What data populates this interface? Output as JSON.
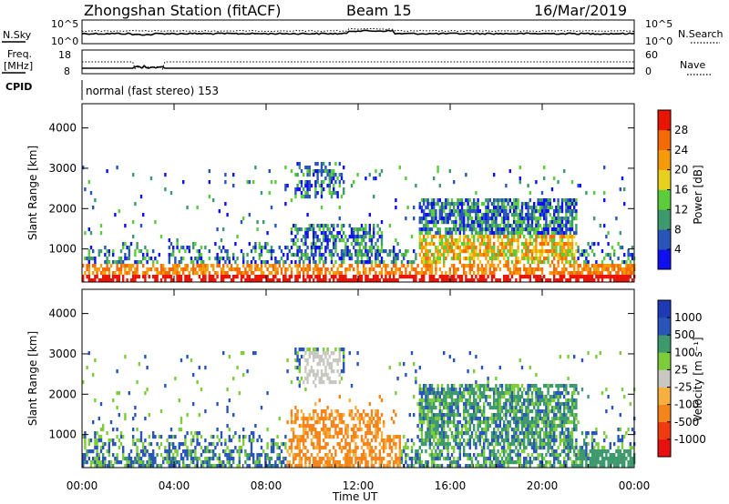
{
  "header": {
    "station": "Zhongshan Station (fitACF)",
    "beam": "Beam 15",
    "date": "16/Mar/2019"
  },
  "strip1": {
    "left_label": "N.Sky",
    "left_ticks": [
      "10^5",
      "10^0"
    ],
    "right_label": "N.Search",
    "right_ticks": [
      "10^5",
      "10^0"
    ]
  },
  "strip2": {
    "left_label_1": "Freq.",
    "left_label_2": "[MHz]",
    "left_ticks": [
      "18",
      "8"
    ],
    "right_label": "Nave",
    "right_ticks": [
      "60",
      "0"
    ]
  },
  "strip3": {
    "left_label": "CPID",
    "mode_text": "normal (fast stereo) 153"
  },
  "chart_data": [
    {
      "type": "heatmap",
      "name": "power",
      "ylabel": "Slant Range [km]",
      "y_ticks": [
        "1000",
        "2000",
        "3000",
        "4000"
      ],
      "ylim": [
        180,
        4600
      ],
      "xlim": [
        0,
        24
      ],
      "colorbar_label": "Power [dB]",
      "colorbar_ticks": [
        "28",
        "24",
        "20",
        "16",
        "12",
        "8",
        "4"
      ],
      "colorbar_colors": [
        "#1010ee",
        "#2a55b8",
        "#3e9a6e",
        "#5ccc3c",
        "#e8d021",
        "#f59a0a",
        "#f46a05",
        "#e81505"
      ]
    },
    {
      "type": "heatmap",
      "name": "velocity",
      "ylabel": "Slant Range [km]",
      "y_ticks": [
        "1000",
        "2000",
        "3000",
        "4000"
      ],
      "ylim": [
        180,
        4600
      ],
      "xlim": [
        0,
        24
      ],
      "xlabel": "Time UT",
      "x_ticks": [
        "00:00",
        "04:00",
        "08:00",
        "12:00",
        "16:00",
        "20:00",
        "00:00"
      ],
      "colorbar_label": "Velocity [m s⁻¹]",
      "colorbar_ticks": [
        "1000",
        "500",
        "100",
        "25",
        "-25",
        "-100",
        "-500",
        "-1000"
      ],
      "colorbar_colors": [
        "#e81010",
        "#f23a10",
        "#f5851a",
        "#f5b040",
        "#c8c8c0",
        "#7ccc3c",
        "#3e9a6e",
        "#2a55b8",
        "#1e3ab4"
      ]
    }
  ]
}
